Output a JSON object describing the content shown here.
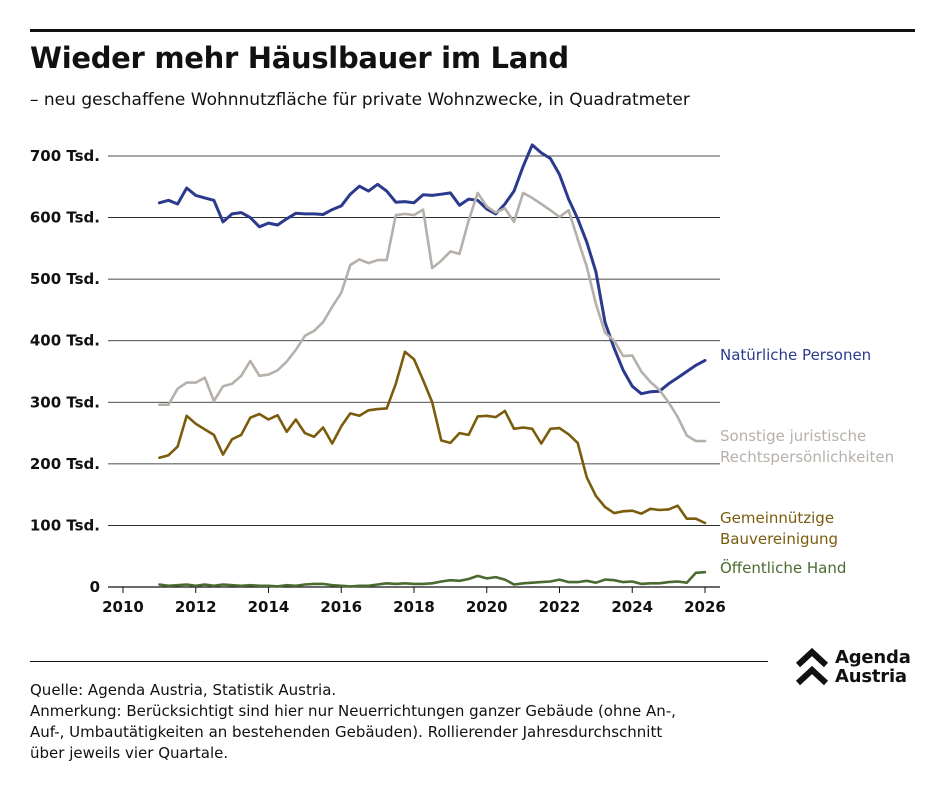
{
  "header": {
    "title": "Wieder mehr Häuslbauer im Land",
    "subtitle": "– neu geschaffene Wohnnutzfläche für private Wohnzwecke, in Quadratmeter"
  },
  "footer": {
    "source": "Quelle: Agenda Austria, Statistik Austria.",
    "note_lines": [
      "Anmerkung: Berücksichtigt sind hier nur Neuerrichtungen ganzer Gebäude (ohne An-,",
      "Auf-, Umbautätigkeiten an bestehenden Gebäuden). Rollierender Jahresdurchschnitt",
      "über jeweils vier Quartale."
    ]
  },
  "logo": {
    "line1": "Agenda",
    "line2": "Austria",
    "icon": "double-chevron-up-icon"
  },
  "colors": {
    "natuerliche": "#2b3a8c",
    "sonstige": "#b6b0aa",
    "gemeinnuetzig": "#7a5c0c",
    "oeffentlich": "#4a6b2f",
    "grid": "#111111"
  },
  "chart_data": {
    "type": "line",
    "title": "Wieder mehr Häuslbauer im Land",
    "xlabel": "",
    "ylabel": "",
    "xlim": [
      2010,
      2026
    ],
    "ylim": [
      0,
      700000
    ],
    "x_ticks": [
      2010,
      2012,
      2014,
      2016,
      2018,
      2020,
      2022,
      2024,
      2026
    ],
    "y_ticks": [
      0,
      100000,
      200000,
      300000,
      400000,
      500000,
      600000,
      700000
    ],
    "y_tick_labels": [
      "0",
      "100 Tsd.",
      "200 Tsd.",
      "300 Tsd.",
      "400 Tsd.",
      "500 Tsd.",
      "600 Tsd.",
      "700 Tsd."
    ],
    "grid": "horizontal",
    "legend": "direct labels at right end of lines",
    "x": [
      2011.0,
      2011.25,
      2011.5,
      2011.75,
      2012.0,
      2012.25,
      2012.5,
      2012.75,
      2013.0,
      2013.25,
      2013.5,
      2013.75,
      2014.0,
      2014.25,
      2014.5,
      2014.75,
      2015.0,
      2015.25,
      2015.5,
      2015.75,
      2016.0,
      2016.25,
      2016.5,
      2016.75,
      2017.0,
      2017.25,
      2017.5,
      2017.75,
      2018.0,
      2018.25,
      2018.5,
      2018.75,
      2019.0,
      2019.25,
      2019.5,
      2019.75,
      2020.0,
      2020.25,
      2020.5,
      2020.75,
      2021.0,
      2021.25,
      2021.5,
      2021.75,
      2022.0,
      2022.25,
      2022.5,
      2022.75,
      2023.0,
      2023.25,
      2023.5,
      2023.75,
      2024.0,
      2024.25,
      2024.5,
      2024.75,
      2025.0,
      2025.25,
      2025.5,
      2025.75,
      2026.0
    ],
    "series": [
      {
        "name": "Natürliche Personen",
        "label_lines": [
          "Natürliche Personen"
        ],
        "color_key": "natuerliche",
        "values": [
          624000,
          628000,
          622000,
          648000,
          636000,
          632000,
          628000,
          593000,
          606000,
          608000,
          600000,
          585000,
          591000,
          588000,
          598000,
          607000,
          606000,
          606000,
          605000,
          613000,
          619000,
          638000,
          651000,
          643000,
          654000,
          643000,
          625000,
          626000,
          624000,
          637000,
          636000,
          638000,
          640000,
          620000,
          630000,
          628000,
          614000,
          606000,
          622000,
          643000,
          683000,
          718000,
          705000,
          696000,
          670000,
          630000,
          598000,
          560000,
          512000,
          430000,
          388000,
          352000,
          326000,
          314000,
          317000,
          318000,
          330000,
          340000,
          350000,
          360000,
          368000
        ]
      },
      {
        "name": "Sonstige juristische Rechtspersönlichkeiten",
        "label_lines": [
          "Sonstige juristische",
          "Rechtspersönlichkeiten"
        ],
        "color_key": "sonstige",
        "values": [
          296000,
          296000,
          322000,
          332000,
          332000,
          340000,
          302000,
          326000,
          330000,
          343000,
          367000,
          343000,
          345000,
          352000,
          366000,
          385000,
          408000,
          416000,
          430000,
          455000,
          478000,
          523000,
          532000,
          526000,
          531000,
          531000,
          604000,
          606000,
          604000,
          613000,
          518000,
          530000,
          545000,
          541000,
          595000,
          640000,
          618000,
          608000,
          615000,
          593000,
          640000,
          632000,
          622000,
          612000,
          601000,
          612000,
          565000,
          520000,
          460000,
          413000,
          400000,
          375000,
          376000,
          350000,
          333000,
          320000,
          300000,
          276000,
          246000,
          237000,
          237000
        ]
      },
      {
        "name": "Gemeinnützige Bauvereinigung",
        "label_lines": [
          "Gemeinnützige",
          "Bauvereinigung"
        ],
        "color_key": "gemeinnuetzig",
        "values": [
          210000,
          214000,
          228000,
          278000,
          265000,
          256000,
          247000,
          215000,
          240000,
          247000,
          275000,
          281000,
          272000,
          279000,
          252000,
          272000,
          250000,
          244000,
          259000,
          233000,
          261000,
          282000,
          278000,
          287000,
          289000,
          290000,
          330000,
          382000,
          370000,
          336000,
          300000,
          238000,
          234000,
          250000,
          247000,
          277000,
          278000,
          276000,
          286000,
          257000,
          259000,
          257000,
          233000,
          257000,
          258000,
          248000,
          234000,
          178000,
          148000,
          130000,
          120000,
          123000,
          124000,
          119000,
          127000,
          125000,
          126000,
          132000,
          111000,
          111000,
          104000
        ]
      },
      {
        "name": "Öffentliche Hand",
        "label_lines": [
          "Öffentliche Hand"
        ],
        "color_key": "oeffentlich",
        "values": [
          4000,
          2000,
          3000,
          4000,
          2000,
          4000,
          2000,
          4000,
          3000,
          2000,
          3000,
          2000,
          2000,
          1000,
          3000,
          2000,
          4000,
          5000,
          5000,
          3000,
          2000,
          1000,
          2000,
          2000,
          4000,
          6000,
          5000,
          6000,
          5000,
          5000,
          6000,
          9000,
          11000,
          10000,
          13000,
          18000,
          14000,
          16000,
          12000,
          4000,
          6000,
          7000,
          8000,
          9000,
          12000,
          8000,
          8000,
          10000,
          7000,
          12000,
          11000,
          8000,
          9000,
          5000,
          6000,
          6000,
          8000,
          9000,
          7000,
          23000,
          24000
        ]
      }
    ]
  }
}
